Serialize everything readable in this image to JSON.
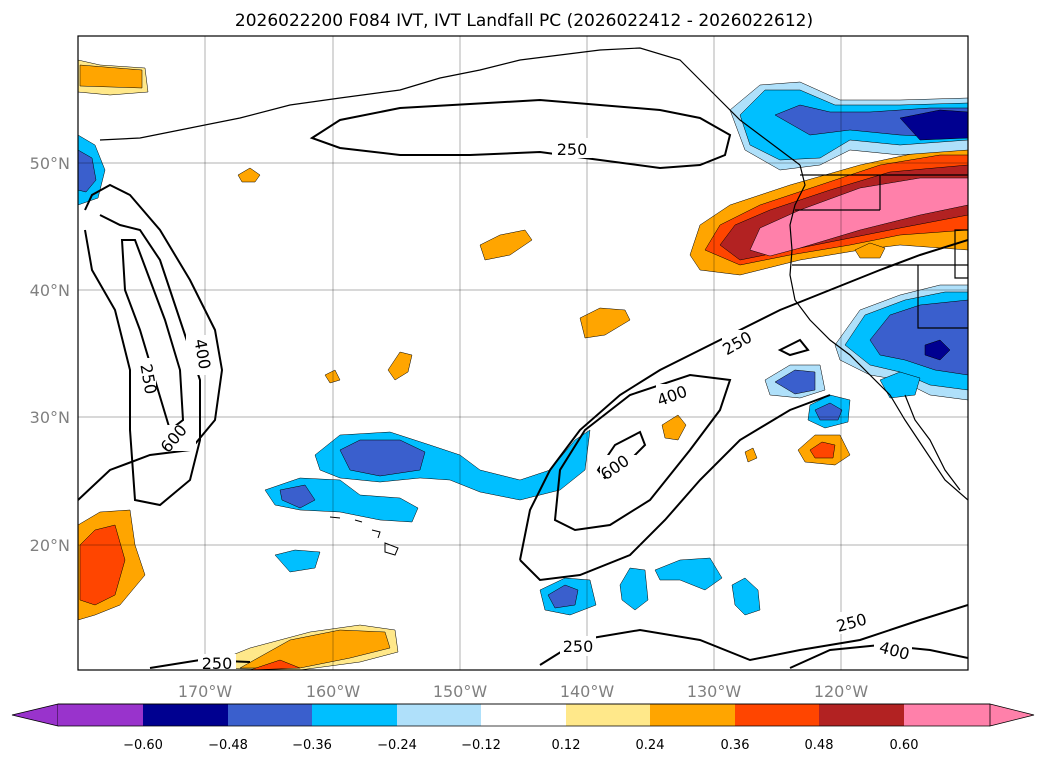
{
  "title": "2026022200 F084 IVT, IVT Landfall PC (2026022412 - 2026022612)",
  "lat_labels": [
    "50°N",
    "40°N",
    "30°N",
    "20°N"
  ],
  "lon_labels": [
    "170°W",
    "160°W",
    "150°W",
    "140°W",
    "130°W",
    "120°W"
  ],
  "colorbar": {
    "ticks": [
      "−0.60",
      "−0.48",
      "−0.36",
      "−0.24",
      "−0.12",
      "0.12",
      "0.24",
      "0.36",
      "0.48",
      "0.60"
    ],
    "colors": [
      "#9933cc",
      "#000090",
      "#3a5fcd",
      "#00bfff",
      "#afe0fa",
      "#ffffff",
      "#ffe88a",
      "#ffa500",
      "#ff4500",
      "#b22222",
      "#ff80aa"
    ]
  },
  "contour_labels": [
    "250",
    "400",
    "250",
    "600",
    "250",
    "400",
    "600",
    "250",
    "250",
    "400",
    "250"
  ]
}
